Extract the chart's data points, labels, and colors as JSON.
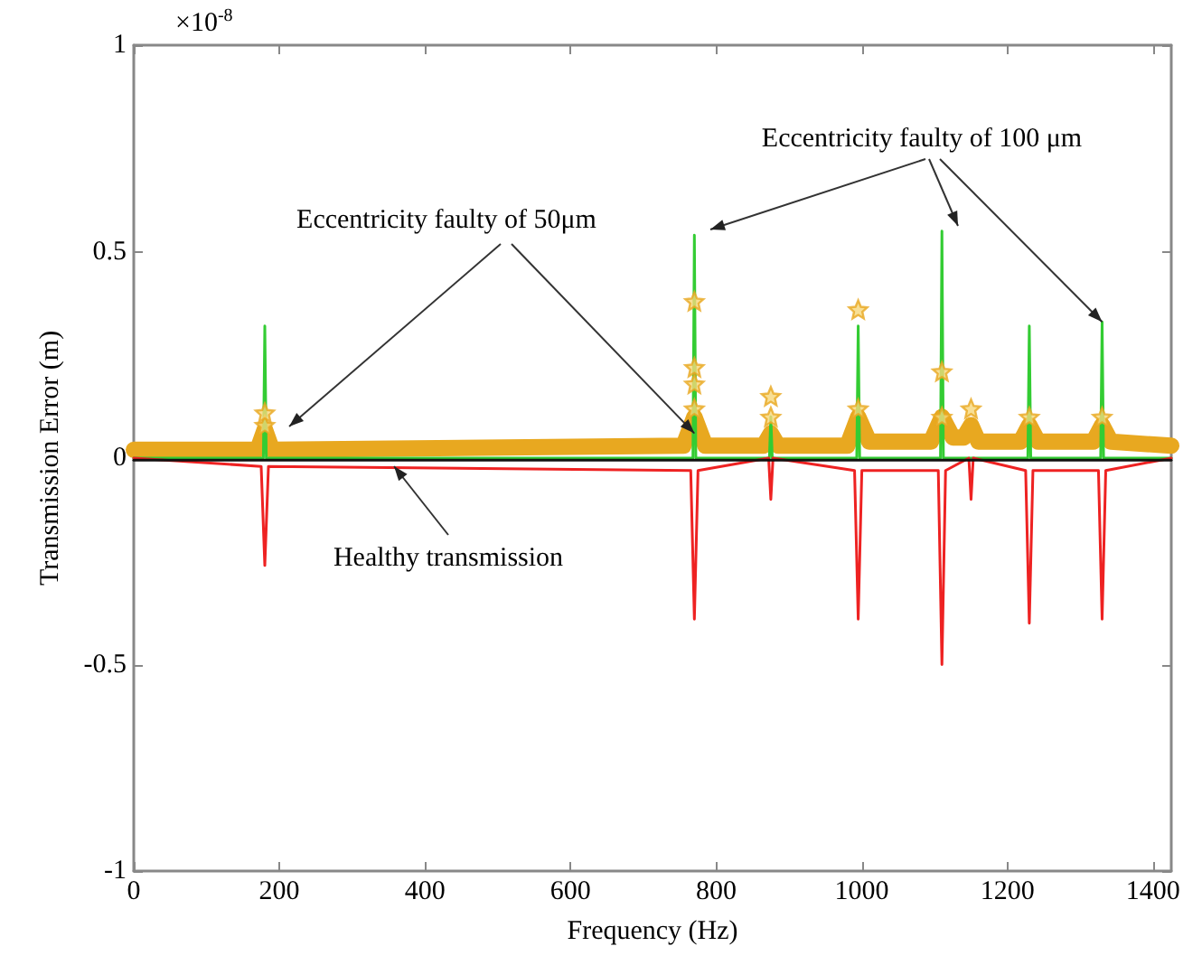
{
  "chart_data": {
    "type": "line",
    "xlabel": "Frequency (Hz)",
    "ylabel": "Transmission Error (m)",
    "annotations": [
      "×10$^{-8}$",
      {
        "text": "Eccentricity faulty of 100 μm",
        "x": 1330,
        "y": 0.33
      },
      {
        "text": "Eccentricity faulty of 50μm",
        "x": 770,
        "y": 0.06
      },
      "Healthy transmission"
    ],
    "xlim": [
      0,
      1425
    ],
    "xticks": [
      0,
      200,
      400,
      600,
      800,
      1000,
      1200,
      1400
    ],
    "ylim": [
      -1,
      1
    ],
    "yticks": [
      -1,
      -0.5,
      0,
      0.5,
      1
    ],
    "grid": false,
    "marker": "none",
    "series": [
      {
        "color": "#e8a820",
        "x": [
          0,
          170,
          180,
          190,
          755,
          770,
          785,
          865,
          875,
          885,
          980,
          995,
          1010,
          1095,
          1110,
          1125,
          1140,
          1150,
          1160,
          1218,
          1230,
          1242,
          1318,
          1330,
          1342,
          1425
        ],
        "values": [
          0.02,
          0.02,
          0.07,
          0.02,
          0.03,
          0.1,
          0.03,
          0.03,
          0.06,
          0.03,
          0.03,
          0.1,
          0.04,
          0.04,
          0.1,
          0.05,
          0.05,
          0.08,
          0.04,
          0.04,
          0.08,
          0.04,
          0.04,
          0.08,
          0.04,
          0.03
        ]
      },
      {
        "color": "#33cc33",
        "x": [
          0,
          178,
          180,
          182,
          768,
          770,
          772,
          873,
          875,
          877,
          993,
          995,
          997,
          1108,
          1110,
          1112,
          1228,
          1230,
          1232,
          1328,
          1330,
          1332,
          1425
        ],
        "values": [
          0,
          0,
          0.32,
          0,
          0,
          0.54,
          0,
          0,
          0.1,
          0,
          0,
          0.32,
          0,
          0,
          0.55,
          0,
          0,
          0.32,
          0,
          0,
          0.33,
          0,
          0
        ]
      },
      {
        "color": "#ee2222",
        "x": [
          0,
          175,
          180,
          185,
          765,
          770,
          775,
          872,
          875,
          878,
          990,
          995,
          1000,
          1105,
          1110,
          1115,
          1147,
          1150,
          1153,
          1225,
          1230,
          1235,
          1325,
          1330,
          1335,
          1425
        ],
        "values": [
          0,
          -0.02,
          -0.26,
          -0.02,
          -0.03,
          -0.39,
          -0.03,
          0,
          -0.1,
          0,
          -0.03,
          -0.39,
          -0.03,
          -0.03,
          -0.5,
          -0.03,
          0,
          -0.1,
          0,
          -0.03,
          -0.4,
          -0.03,
          -0.03,
          -0.39,
          -0.03,
          0
        ]
      },
      {
        "color": "#111111",
        "x": [
          0,
          1425
        ],
        "values": [
          -0.005,
          -0.005
        ]
      },
      {
        "type": "scatter",
        "marker": "star",
        "color": "#e8a820",
        "x": [
          180,
          180,
          770,
          770,
          770,
          770,
          875,
          875,
          995,
          995,
          1110,
          1110,
          1150,
          1230,
          1330
        ],
        "values": [
          0.08,
          0.11,
          0.38,
          0.22,
          0.18,
          0.12,
          0.15,
          0.1,
          0.36,
          0.12,
          0.21,
          0.1,
          0.12,
          0.1,
          0.1
        ]
      }
    ]
  }
}
